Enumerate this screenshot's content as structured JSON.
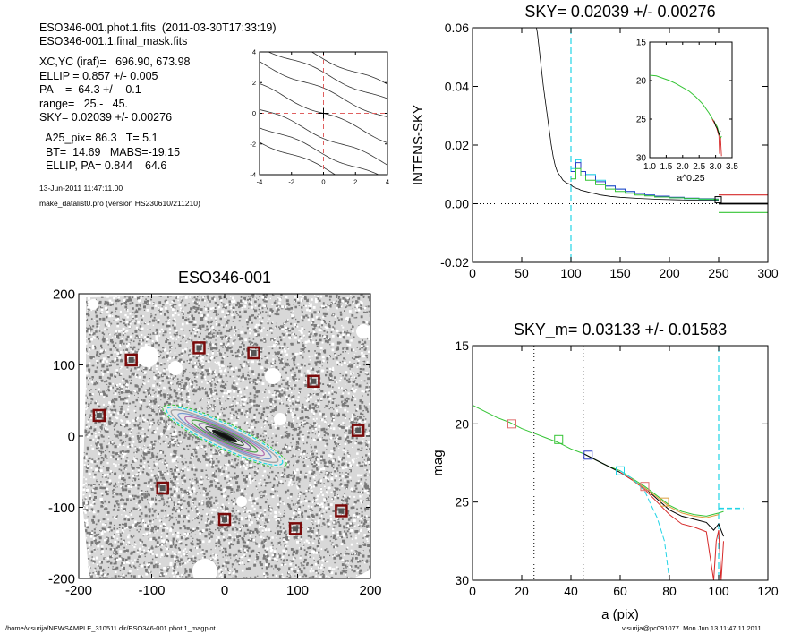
{
  "header": {
    "line1": "ESO346-001.phot.1.fits  (2011-03-30T17:33:19)",
    "line2": "ESO346-001.1.final_mask.fits",
    "line3": "XC,YC (iraf)=   696.90, 673.98",
    "line4": "ELLIP = 0.857 +/- 0.005",
    "line5": "PA    =  64.3 +/-   0.1",
    "line6": "range=   25.-   45.",
    "line7": "SKY= 0.02039 +/- 0.00276",
    "line8": "  A25_pix= 86.3   T= 5.1",
    "line9": "  BT=  14.69   MABS=-19.15",
    "line10": "  ELLIP, PA= 0.844    64.6",
    "date": "13-Jun-2011 11:47:11.00",
    "program": "make_datalist0.pro (version HS230610/211210)"
  },
  "footer": {
    "left": "/home/visurija/NEWSAMPLE_310511.dir/ESO346-001.phot.1_magplot",
    "right": "visurija@pc091077  Mon Jun 13 11:47:11 2011"
  },
  "colors": {
    "black": "#000000",
    "cyan": "#22d4e6",
    "blue": "#2a3fc8",
    "green": "#34c434",
    "red": "#d62a2a",
    "orange": "#e0a040",
    "pink": "#e07070",
    "darkred": "#7a0a0a",
    "gray": "#888888"
  },
  "chart_data": [
    {
      "id": "contour",
      "type": "line",
      "title": "",
      "xlim": [
        -4,
        4
      ],
      "ylim": [
        -4,
        4
      ],
      "xticks": [
        "-4",
        "-2",
        "0",
        "2",
        "4"
      ],
      "yticks": [
        "4",
        "2",
        "0",
        "-2",
        "-4"
      ],
      "contour_offsets": [
        -3.6,
        -2.6,
        -1.5,
        0,
        1.5,
        2.6,
        3.6
      ],
      "slope": -0.45,
      "crosshair": [
        0,
        0
      ]
    },
    {
      "id": "sky",
      "type": "line",
      "title": "SKY= 0.02039 +/- 0.00276",
      "xlabel": "",
      "ylabel": "INTENS-SKY",
      "xlim": [
        0,
        300
      ],
      "ylim": [
        -0.02,
        0.06
      ],
      "xticks": [
        "0",
        "50",
        "100",
        "150",
        "200",
        "250",
        "300"
      ],
      "yticks": [
        "0.06",
        "0.04",
        "0.02",
        "0.00",
        "-0.02"
      ],
      "vline_x": 100,
      "series": [
        {
          "color": "black",
          "x": [
            64,
            66,
            68,
            70,
            72,
            74,
            76,
            78,
            80,
            82,
            84,
            86,
            88,
            90,
            92,
            94,
            96,
            98,
            100,
            102,
            104,
            106,
            108,
            110,
            115,
            120,
            125,
            130,
            140,
            150,
            170,
            190,
            210,
            230,
            250
          ],
          "y": [
            0.062,
            0.058,
            0.052,
            0.046,
            0.04,
            0.035,
            0.03,
            0.025,
            0.02,
            0.016,
            0.013,
            0.011,
            0.01,
            0.009,
            0.008,
            0.0075,
            0.007,
            0.0068,
            0.0064,
            0.0058,
            0.0055,
            0.0052,
            0.005,
            0.0046,
            0.0042,
            0.0038,
            0.0034,
            0.003,
            0.0025,
            0.0022,
            0.0018,
            0.0015,
            0.0013,
            0.0012,
            0.0012
          ]
        },
        {
          "color": "cyan",
          "stepx": [
            100,
            105,
            110,
            115,
            125,
            135,
            145,
            155,
            165,
            175,
            185,
            200,
            215,
            230,
            245,
            250
          ],
          "stepy": [
            0.012,
            0.015,
            0.011,
            0.01,
            0.008,
            0.006,
            0.005,
            0.0042,
            0.0035,
            0.003,
            0.0025,
            0.002,
            0.0017,
            0.0015,
            0.0014
          ]
        },
        {
          "color": "blue",
          "stepx": [
            100,
            105,
            110,
            115,
            125,
            135,
            145,
            155,
            165,
            175,
            185,
            200,
            215,
            230,
            245,
            250
          ],
          "stepy": [
            0.011,
            0.014,
            0.011,
            0.0095,
            0.0075,
            0.006,
            0.005,
            0.0042,
            0.0035,
            0.003,
            0.0026,
            0.0022,
            0.0019,
            0.0017,
            0.0016
          ]
        },
        {
          "color": "green",
          "stepx": [
            100,
            105,
            110,
            115,
            125,
            135,
            145,
            155,
            165,
            175,
            185,
            200,
            215,
            230,
            245,
            250
          ],
          "stepy": [
            0.0085,
            0.012,
            0.0095,
            0.008,
            0.0065,
            0.005,
            0.0042,
            0.0036,
            0.003,
            0.0027,
            0.0023,
            0.002,
            0.0018,
            0.0016,
            0.0015
          ]
        }
      ],
      "tail": {
        "red_y": 0.003,
        "black_y": 0.0,
        "green_y": -0.003,
        "x_start": 250,
        "x_end": 300
      },
      "inset": {
        "xlabel": "a^0.25",
        "xlim": [
          1.0,
          3.5
        ],
        "ylim": [
          15,
          30
        ],
        "xticks": [
          "1.0",
          "1.5",
          "2.0",
          "2.5",
          "3.0",
          "3.5"
        ],
        "yticks": [
          "15",
          "20",
          "25",
          "30"
        ],
        "x": [
          1.0,
          1.2,
          1.4,
          1.6,
          1.8,
          2.0,
          2.2,
          2.4,
          2.6,
          2.8,
          2.95,
          3.05,
          3.1,
          3.15,
          3.18
        ],
        "y": [
          19.3,
          19.4,
          19.7,
          20.0,
          20.4,
          20.9,
          21.4,
          22.1,
          23.0,
          24.2,
          25.3,
          26.0,
          26.8,
          27.5,
          27.2
        ]
      }
    },
    {
      "id": "image",
      "type": "scatter",
      "title": "ESO346-001",
      "xlim": [
        -200,
        200
      ],
      "ylim": [
        -200,
        200
      ],
      "xticks": [
        "-200",
        "-100",
        "0",
        "100",
        "200"
      ],
      "yticks": [
        "200",
        "100",
        "0",
        "-100",
        "-200"
      ],
      "galaxy": {
        "x": 0,
        "y": 0,
        "a": 95,
        "b": 14,
        "pa_deg": 25
      },
      "masks": [
        {
          "x": -128,
          "y": 107
        },
        {
          "x": -35,
          "y": 124
        },
        {
          "x": 40,
          "y": 117
        },
        {
          "x": 122,
          "y": 77
        },
        {
          "x": -172,
          "y": 29
        },
        {
          "x": 183,
          "y": 8
        },
        {
          "x": -85,
          "y": -73
        },
        {
          "x": 0,
          "y": -117
        },
        {
          "x": 97,
          "y": -130
        },
        {
          "x": 160,
          "y": -105
        }
      ]
    },
    {
      "id": "mag",
      "type": "line",
      "title": "SKY_m=  0.03133 +/- 0.01583",
      "xlabel": "a (pix)",
      "ylabel": "mag",
      "xlim": [
        0,
        120
      ],
      "ylim": [
        15,
        30
      ],
      "xticks": [
        "0",
        "20",
        "40",
        "60",
        "80",
        "100",
        "120"
      ],
      "yticks": [
        "15",
        "20",
        "25",
        "30"
      ],
      "dotted_x": [
        25,
        45
      ],
      "dashed_x": 100,
      "series": [
        {
          "color": "green",
          "x": [
            0,
            5,
            10,
            15,
            20,
            25,
            30,
            35,
            40,
            45,
            50,
            55,
            60,
            65,
            70,
            75,
            80,
            85,
            90,
            95,
            100,
            102
          ],
          "y": [
            18.8,
            19.2,
            19.6,
            19.9,
            20.3,
            20.6,
            20.9,
            21.2,
            21.6,
            21.9,
            22.3,
            22.7,
            23.0,
            23.5,
            24.0,
            24.6,
            25.2,
            25.6,
            25.8,
            25.9,
            25.7,
            25.6
          ]
        },
        {
          "color": "black",
          "x": [
            45,
            50,
            55,
            60,
            65,
            70,
            75,
            80,
            85,
            90,
            95,
            98,
            100,
            102
          ],
          "y": [
            21.9,
            22.3,
            22.7,
            23.1,
            23.6,
            24.1,
            24.8,
            25.5,
            25.9,
            26.1,
            26.3,
            26.8,
            26.4,
            27.2
          ]
        },
        {
          "color": "red",
          "x": [
            60,
            65,
            70,
            75,
            80,
            85,
            90,
            95,
            97,
            98,
            99,
            100,
            101,
            102
          ],
          "y": [
            23.1,
            23.6,
            24.2,
            25.0,
            25.8,
            26.4,
            26.6,
            26.9,
            29.0,
            30.0,
            27.5,
            26.8,
            30.0,
            27.5
          ]
        },
        {
          "color": "orange",
          "x": [
            65,
            70,
            75,
            80,
            85,
            90,
            95,
            100
          ],
          "y": [
            23.6,
            24.1,
            24.7,
            25.3,
            25.7,
            25.9,
            26.0,
            25.8
          ]
        },
        {
          "color": "cyan",
          "x": [
            60,
            65,
            70,
            72,
            75,
            78,
            80
          ],
          "y": [
            23.0,
            23.5,
            24.3,
            25.0,
            26.0,
            27.5,
            30.0
          ]
        }
      ],
      "cyan_tail": {
        "x_start": 100,
        "x_end": 110,
        "y": 25.4
      },
      "markers": [
        {
          "x": 16,
          "y": 20.0,
          "color": "pink"
        },
        {
          "x": 35,
          "y": 21.0,
          "color": "green"
        },
        {
          "x": 47,
          "y": 22.0,
          "color": "blue"
        },
        {
          "x": 60,
          "y": 23.0,
          "color": "cyan"
        },
        {
          "x": 70,
          "y": 24.0,
          "color": "pink"
        },
        {
          "x": 78,
          "y": 25.0,
          "color": "orange"
        }
      ]
    }
  ]
}
